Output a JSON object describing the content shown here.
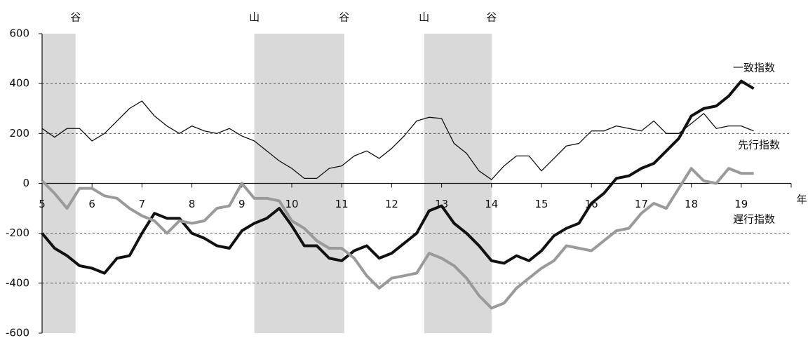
{
  "chart_data": {
    "type": "line",
    "x_label": "年",
    "xlim": [
      5,
      20
    ],
    "xticks": [
      5,
      6,
      7,
      8,
      9,
      10,
      11,
      12,
      13,
      14,
      15,
      16,
      17,
      18,
      19
    ],
    "ylim": [
      -600,
      600
    ],
    "yticks": [
      -600,
      -400,
      -200,
      0,
      200,
      400,
      600
    ],
    "grid": true,
    "shaded_regions": [
      [
        5,
        5.67
      ],
      [
        9.25,
        11.05
      ],
      [
        12.65,
        14.0
      ]
    ],
    "annotations": [
      {
        "x": 5.67,
        "label": "谷"
      },
      {
        "x": 9.25,
        "label": "山"
      },
      {
        "x": 11.05,
        "label": "谷"
      },
      {
        "x": 12.65,
        "label": "山"
      },
      {
        "x": 14.0,
        "label": "谷"
      }
    ],
    "x": [
      5.0,
      5.25,
      5.5,
      5.75,
      6.0,
      6.25,
      6.5,
      6.75,
      7.0,
      7.25,
      7.5,
      7.75,
      8.0,
      8.25,
      8.5,
      8.75,
      9.0,
      9.25,
      9.5,
      9.75,
      10.0,
      10.25,
      10.5,
      10.75,
      11.0,
      11.25,
      11.5,
      11.75,
      12.0,
      12.25,
      12.5,
      12.75,
      13.0,
      13.25,
      13.5,
      13.75,
      14.0,
      14.25,
      14.5,
      14.75,
      15.0,
      15.25,
      15.5,
      15.75,
      16.0,
      16.25,
      16.5,
      16.75,
      17.0,
      17.25,
      17.5,
      17.75,
      18.0,
      18.25,
      18.5,
      18.75,
      19.0,
      19.25
    ],
    "series": [
      {
        "name": "一致指数",
        "color": "#111111",
        "width": 4,
        "values": [
          -200,
          -260,
          -290,
          -330,
          -340,
          -360,
          -300,
          -290,
          -200,
          -120,
          -140,
          -140,
          -200,
          -220,
          -250,
          -260,
          -190,
          -160,
          -140,
          -100,
          -170,
          -250,
          -250,
          -300,
          -310,
          -270,
          -250,
          -300,
          -280,
          -240,
          -200,
          -110,
          -90,
          -160,
          -200,
          -250,
          -310,
          -320,
          -290,
          -310,
          -270,
          -210,
          -180,
          -160,
          -80,
          -40,
          20,
          30,
          60,
          80,
          130,
          180,
          270,
          300,
          310,
          350,
          410,
          380
        ]
      },
      {
        "name": "先行指数",
        "color": "#111111",
        "width": 1.3,
        "values": [
          220,
          185,
          220,
          220,
          170,
          200,
          250,
          300,
          330,
          270,
          230,
          200,
          230,
          210,
          200,
          220,
          190,
          170,
          130,
          90,
          60,
          20,
          20,
          60,
          70,
          110,
          130,
          100,
          140,
          190,
          250,
          265,
          260,
          160,
          120,
          50,
          15,
          70,
          110,
          110,
          50,
          100,
          150,
          160,
          210,
          210,
          230,
          220,
          210,
          250,
          200,
          200,
          240,
          280,
          220,
          230,
          230,
          210
        ]
      },
      {
        "name": "遅行指数",
        "color": "#9a9a9a",
        "width": 4,
        "values": [
          10,
          -40,
          -100,
          -20,
          -20,
          -50,
          -60,
          -100,
          -130,
          -150,
          -200,
          -150,
          -160,
          -150,
          -100,
          -90,
          0,
          -60,
          -60,
          -70,
          -150,
          -180,
          -230,
          -260,
          -260,
          -300,
          -370,
          -420,
          -380,
          -370,
          -360,
          -280,
          -300,
          -330,
          -380,
          -450,
          -500,
          -480,
          -420,
          -380,
          -340,
          -310,
          -250,
          -260,
          -270,
          -230,
          -190,
          -180,
          -120,
          -80,
          -100,
          -20,
          60,
          10,
          0,
          60,
          40,
          40
        ]
      }
    ]
  }
}
